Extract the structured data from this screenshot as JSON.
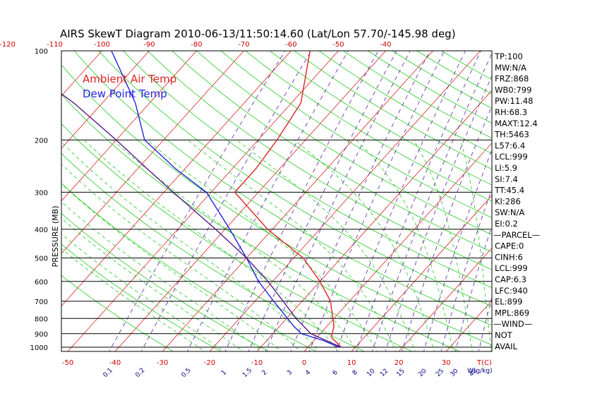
{
  "chart_data": {
    "type": "line",
    "title": "AIRS SkewT Diagram 2010-06-13/11:50:14.60 (Lat/Lon 57.70/-145.98 deg)",
    "ylabel": "PRESSURE (MB)",
    "xlabel": "T(C)",
    "mixing_ratio_label": "W(g/kg)",
    "y_scale": "log-pressure",
    "ylim": [
      1000,
      100
    ],
    "y_tick_labels": [
      "100",
      "200",
      "300",
      "400",
      "500",
      "600",
      "700",
      "800",
      "900",
      "1000"
    ],
    "x_top_tick_labels": [
      "-120",
      "-110",
      "-100",
      "-90",
      "-80",
      "-70",
      "-60",
      "-50",
      "-40"
    ],
    "x_bottom_tick_labels": [
      "-50",
      "-40",
      "-30",
      "-20",
      "-10",
      "0",
      "10",
      "20",
      "30"
    ],
    "mixing_ratio_tick_labels": [
      "0.1",
      "0.2",
      "0.5",
      "1",
      "1.5",
      "2",
      "3",
      "4",
      "6",
      "8",
      "10",
      "12",
      "15",
      "20",
      "25",
      "30",
      "40"
    ],
    "legend": [
      {
        "name": "Ambient Air Temp",
        "color": "#dd2222"
      },
      {
        "name": "Dew Point Temp",
        "color": "#2222dd"
      }
    ],
    "series": [
      {
        "name": "Ambient Air Temp",
        "color": "#dd2222",
        "points": [
          {
            "p": 1000,
            "t": 7.0
          },
          {
            "p": 925,
            "t": 3.0
          },
          {
            "p": 850,
            "t": 1.5
          },
          {
            "p": 700,
            "t": -4.0
          },
          {
            "p": 600,
            "t": -10.0
          },
          {
            "p": 500,
            "t": -18.0
          },
          {
            "p": 400,
            "t": -31.0
          },
          {
            "p": 300,
            "t": -45.0
          },
          {
            "p": 250,
            "t": -45.0
          },
          {
            "p": 200,
            "t": -46.0
          },
          {
            "p": 150,
            "t": -48.0
          },
          {
            "p": 100,
            "t": -56.0
          }
        ]
      },
      {
        "name": "Dew Point Temp",
        "color": "#2222dd",
        "points": [
          {
            "p": 1000,
            "t": 6.5
          },
          {
            "p": 950,
            "t": 2.0
          },
          {
            "p": 900,
            "t": -4.0
          },
          {
            "p": 850,
            "t": -7.0
          },
          {
            "p": 700,
            "t": -16.0
          },
          {
            "p": 600,
            "t": -23.0
          },
          {
            "p": 500,
            "t": -30.0
          },
          {
            "p": 400,
            "t": -39.0
          },
          {
            "p": 300,
            "t": -51.0
          },
          {
            "p": 250,
            "t": -62.0
          },
          {
            "p": 200,
            "t": -74.0
          },
          {
            "p": 150,
            "t": -83.0
          },
          {
            "p": 100,
            "t": -98.0
          }
        ]
      },
      {
        "name": "Parcel",
        "color": "#551a8b",
        "points": [
          {
            "p": 1000,
            "t": 7.0
          },
          {
            "p": 900,
            "t": -2.0
          },
          {
            "p": 800,
            "t": -8.0
          },
          {
            "p": 700,
            "t": -14.0
          },
          {
            "p": 600,
            "t": -21.0
          },
          {
            "p": 500,
            "t": -30.0
          },
          {
            "p": 400,
            "t": -42.0
          },
          {
            "p": 300,
            "t": -58.0
          },
          {
            "p": 250,
            "t": -68.0
          },
          {
            "p": 200,
            "t": -80.0
          },
          {
            "p": 150,
            "t": -96.0
          },
          {
            "p": 100,
            "t": -121.0
          }
        ]
      }
    ],
    "indices": [
      "TP:100",
      "MW:N/A",
      "FRZ:868",
      "WB0:799",
      "PW:11.48",
      "RH:68.3",
      "MAXT:12.4",
      "TH:5463",
      "L57:6.4",
      "LCL:999",
      "LI:5.9",
      "SI:7.4",
      "TT:45.4",
      "KI:286",
      "SW:N/A",
      "EI:0.2",
      "—PARCEL—",
      "CAPE:0",
      "CINH:6",
      "LCL:999",
      "CAP:6.3",
      "LFC:940",
      "EL:899",
      "MPL:869",
      "—WIND—",
      "NOT",
      "AVAIL"
    ],
    "colors": {
      "isobar": "#000000",
      "isotherm": "#dd2222",
      "dry_adiabat": "#22cc22",
      "moist_adiabat": "#22cc22",
      "mixing_ratio": "#5522aa",
      "air_temp": "#dd2222",
      "dew_point": "#2222dd",
      "parcel": "#551a8b"
    }
  }
}
